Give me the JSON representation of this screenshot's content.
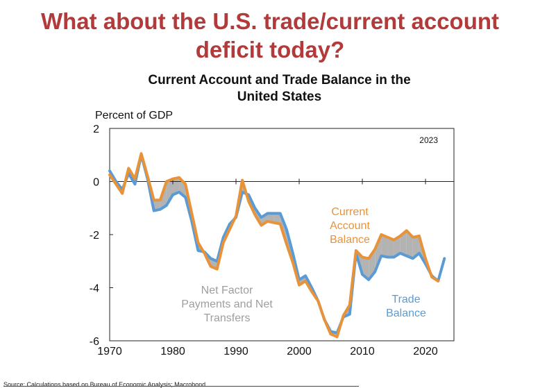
{
  "slide": {
    "title_line1": "What about the U.S. trade/current account",
    "title_line2": "deficit today?"
  },
  "source": "Source: Calculations based on Bureau of Economic Analysis; Macrobond",
  "colors": {
    "current_account": "#E8923A",
    "trade_balance": "#5B9BD5",
    "net_factor_fill": "#A6A6A6",
    "net_factor_text": "#9E9E9E",
    "title_red": "#B23A3A"
  },
  "chart_data": {
    "type": "line",
    "title_line1": "Current Account and Trade Balance in the",
    "title_line2": "United States",
    "ylabel": "Percent of GDP",
    "year_label": "2023",
    "xlim": [
      1970,
      2024.5
    ],
    "ylim": [
      -6,
      2
    ],
    "xticks": [
      1970,
      1980,
      1990,
      2000,
      2010,
      2020
    ],
    "yticks": [
      2,
      0,
      -2,
      -4,
      -6
    ],
    "grid": false,
    "annotations": {
      "current_account": [
        "Current",
        "Account",
        "Balance"
      ],
      "net_factor": [
        "Net Factor",
        "Payments and Net",
        "Transfers"
      ],
      "trade_balance": [
        "Trade",
        "Balance"
      ]
    },
    "x": [
      1970,
      1971,
      1972,
      1973,
      1974,
      1975,
      1976,
      1977,
      1978,
      1979,
      1980,
      1981,
      1982,
      1983,
      1984,
      1985,
      1986,
      1987,
      1988,
      1989,
      1990,
      1991,
      1992,
      1993,
      1994,
      1995,
      1996,
      1997,
      1998,
      1999,
      2000,
      2001,
      2002,
      2003,
      2004,
      2005,
      2006,
      2007,
      2008,
      2009,
      2010,
      2011,
      2012,
      2013,
      2014,
      2015,
      2016,
      2017,
      2018,
      2019,
      2020,
      2021,
      2022,
      2023
    ],
    "series": [
      {
        "name": "Trade Balance",
        "values": [
          0.4,
          0.0,
          -0.3,
          0.3,
          -0.1,
          1.0,
          0.1,
          -1.1,
          -1.05,
          -0.9,
          -0.5,
          -0.4,
          -0.6,
          -1.5,
          -2.6,
          -2.65,
          -2.9,
          -3.0,
          -2.1,
          -1.6,
          -1.35,
          -0.4,
          -0.5,
          -1.0,
          -1.35,
          -1.2,
          -1.2,
          -1.2,
          -1.8,
          -2.7,
          -3.7,
          -3.55,
          -4.0,
          -4.5,
          -5.2,
          -5.65,
          -5.7,
          -5.1,
          -5.0,
          -2.7,
          -3.5,
          -3.7,
          -3.4,
          -2.8,
          -2.85,
          -2.85,
          -2.7,
          -2.8,
          -2.9,
          -2.7,
          -3.1,
          -3.55,
          -3.75,
          -2.9
        ]
      },
      {
        "name": "Current Account Balance",
        "values": [
          0.25,
          -0.1,
          -0.45,
          0.5,
          0.1,
          1.05,
          0.2,
          -0.7,
          -0.7,
          0.0,
          0.1,
          0.15,
          -0.1,
          -1.2,
          -2.3,
          -2.7,
          -3.2,
          -3.3,
          -2.3,
          -1.8,
          -1.3,
          0.05,
          -0.75,
          -1.25,
          -1.65,
          -1.5,
          -1.55,
          -1.6,
          -2.35,
          -3.05,
          -3.9,
          -3.75,
          -4.15,
          -4.5,
          -5.2,
          -5.75,
          -5.85,
          -5.05,
          -4.65,
          -2.6,
          -2.85,
          -2.9,
          -2.55,
          -2.0,
          -2.1,
          -2.2,
          -2.05,
          -1.85,
          -2.1,
          -2.05,
          -2.9,
          -3.6,
          -3.75,
          null
        ]
      }
    ]
  }
}
